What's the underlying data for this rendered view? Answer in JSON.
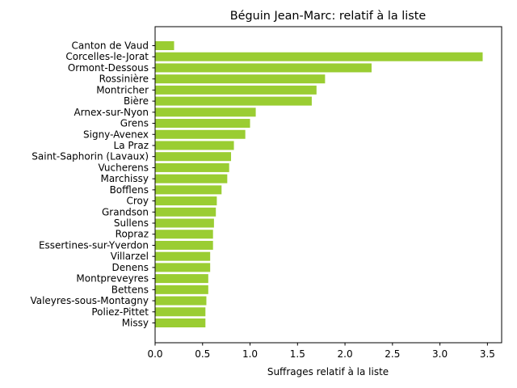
{
  "chart_data": {
    "type": "bar",
    "orientation": "horizontal",
    "title": "Béguin Jean-Marc: relatif à la liste",
    "xlabel": "Suffrages relatif à la liste",
    "ylabel": "",
    "xlim": [
      0,
      3.65
    ],
    "xticks": [
      "0.0",
      "0.5",
      "1.0",
      "1.5",
      "2.0",
      "2.5",
      "3.0",
      "3.5"
    ],
    "bar_color": "#9acd32",
    "grid": false,
    "categories": [
      "Canton de Vaud",
      "Corcelles-le-Jorat",
      "Ormont-Dessous",
      "Rossinière",
      "Montricher",
      "Bière",
      "Arnex-sur-Nyon",
      "Grens",
      "Signy-Avenex",
      "La Praz",
      "Saint-Saphorin (Lavaux)",
      "Vucherens",
      "Marchissy",
      "Bofflens",
      "Croy",
      "Grandson",
      "Sullens",
      "Ropraz",
      "Essertines-sur-Yverdon",
      "Villarzel",
      "Denens",
      "Montpreveyres",
      "Bettens",
      "Valeyres-sous-Montagny",
      "Poliez-Pittet",
      "Missy"
    ],
    "values": [
      0.2,
      3.45,
      2.28,
      1.79,
      1.7,
      1.65,
      1.06,
      1.0,
      0.95,
      0.83,
      0.8,
      0.78,
      0.76,
      0.7,
      0.65,
      0.64,
      0.62,
      0.61,
      0.61,
      0.58,
      0.58,
      0.56,
      0.56,
      0.54,
      0.53,
      0.53
    ]
  }
}
